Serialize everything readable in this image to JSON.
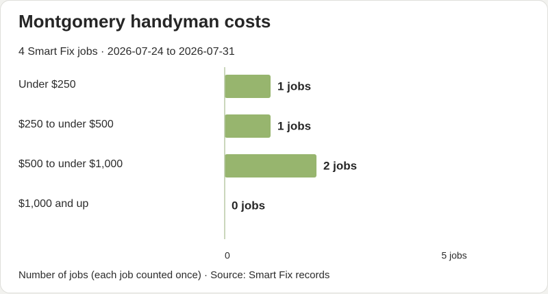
{
  "header": {
    "title": "Montgomery handyman costs",
    "subtitle": "4 Smart Fix jobs · 2026-07-24 to 2026-07-31"
  },
  "footer": {
    "note": "Number of jobs (each job counted once) · Source: Smart Fix records"
  },
  "chart_data": {
    "type": "bar",
    "orientation": "horizontal",
    "title": "Montgomery handyman costs",
    "subtitle": "4 Smart Fix jobs · 2026-07-24 to 2026-07-31",
    "categories": [
      "Under $250",
      "$250 to under $500",
      "$500 to under $1,000",
      "$1,000 and up"
    ],
    "values": [
      1,
      1,
      2,
      0
    ],
    "value_labels": [
      "1 jobs",
      "1 jobs",
      "2 jobs",
      "0 jobs"
    ],
    "xlim": [
      0,
      5
    ],
    "x_ticks": [
      {
        "value": 0,
        "label": "0"
      },
      {
        "value": 5,
        "label": "5 jobs"
      }
    ],
    "xlabel": "Number of jobs (each job counted once) · Source: Smart Fix records",
    "grid": false,
    "legend": "none",
    "bar_color": "#97b56e",
    "axis_color": "#b9c9a6"
  }
}
